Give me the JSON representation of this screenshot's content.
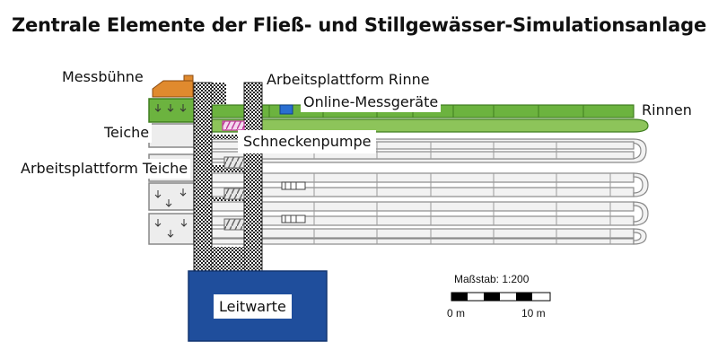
{
  "title": "Zentrale Elemente der Fließ- und Stillgewässer-Simulationsanlage",
  "labels": {
    "messbuehne": "Messbühne",
    "arbeitsplattform_rinne": "Arbeitsplattform  Rinne",
    "online_messgeraete": "Online-Messgeräte",
    "rinnen": "Rinnen",
    "teiche": "Teiche",
    "schneckenpumpe": "Schneckenpumpe",
    "arbeitsplattform_teiche": "Arbeitsplattform  Teiche",
    "leitwarte": "Leitwarte"
  },
  "scale": {
    "title": "Maßstab: 1:200",
    "tick_start": "0 m",
    "tick_end": "10 m"
  },
  "colors": {
    "green": "#6cb33f",
    "green_dark": "#3f7d1f",
    "orange": "#e08a2e",
    "navy": "#1f4e9c",
    "blue_device": "#2a6fd1",
    "magenta": "#c03a9c",
    "channel_fill": "#f2f2f2",
    "channel_stroke": "#8a8a8a",
    "pond_fill": "#ededed"
  },
  "icons": {
    "pond_marker": "down-arrow-icon",
    "pump": "screw-pump-icon",
    "sensor": "measuring-device-icon"
  }
}
